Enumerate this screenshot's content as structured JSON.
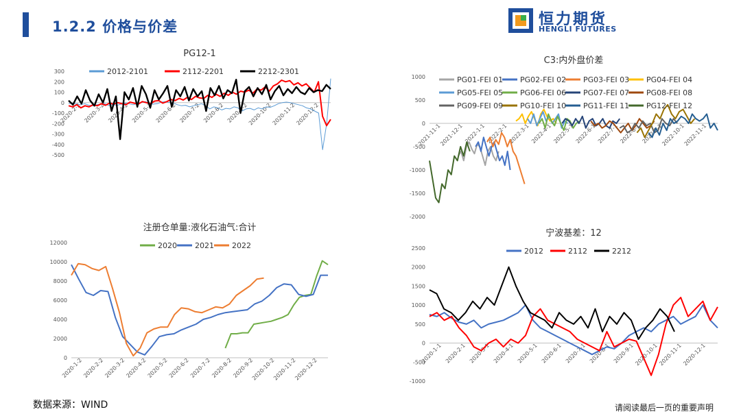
{
  "header": {
    "title": "1.2.2 价格与价差"
  },
  "logo": {
    "name_cn": "恒力期货",
    "name_en": "HENGLI FUTURES"
  },
  "footer": {
    "source": "数据来源：WIND",
    "disclaimer": "请阅读最后一页的重要声明"
  },
  "colors": {
    "brand": "#1f4e9c",
    "logo_orange": "#f29a1e",
    "logo_green": "#3aae49"
  },
  "chart_data": [
    {
      "id": "pg12-1",
      "type": "line",
      "title": "PG12-1",
      "ylim": [
        -500,
        300
      ],
      "yticks": [
        300,
        200,
        100,
        0,
        -100,
        -200,
        -300,
        -400,
        -500
      ],
      "xticks": [
        "2020-2-2",
        "2020-3-2",
        "2020-4-2",
        "2020-5-2",
        "2020-6-2",
        "2020-7-2",
        "2020-8-2",
        "2020-9-2",
        "2020-10-2",
        "2020-11-2",
        "2020-12-2"
      ],
      "grid": false,
      "legend": "top",
      "series": [
        {
          "name": "2012-2101",
          "color": "#5b9bd5",
          "width": 1,
          "values": [
            -10,
            -5,
            -15,
            -20,
            -10,
            -25,
            -30,
            -20,
            -15,
            -10,
            -30,
            -20,
            -25,
            -15,
            -5,
            -10,
            -20,
            -10,
            0,
            10,
            -5,
            -15,
            -10,
            5,
            10,
            0,
            -5,
            -20,
            -30,
            -25,
            -40,
            -30,
            -20,
            -10,
            -30,
            -60,
            -40,
            -50,
            -70,
            -55,
            -60,
            -40,
            -50,
            -80,
            -60,
            -55,
            -70,
            -50,
            -60,
            -40,
            -45,
            -30,
            -10,
            0,
            5,
            0,
            -10,
            -20,
            -30,
            -50,
            -60,
            -80,
            -100,
            -450,
            -200,
            230
          ]
        },
        {
          "name": "2112-2201",
          "color": "#ff0000",
          "width": 2,
          "values": [
            -30,
            -40,
            -20,
            -50,
            -30,
            -40,
            -20,
            -30,
            -10,
            -25,
            -5,
            -15,
            0,
            -10,
            -20,
            5,
            -5,
            -15,
            10,
            0,
            -10,
            15,
            20,
            -5,
            10,
            30,
            20,
            40,
            25,
            50,
            30,
            60,
            45,
            40,
            70,
            50,
            80,
            60,
            90,
            70,
            100,
            80,
            110,
            100,
            120,
            90,
            130,
            120,
            150,
            110,
            160,
            180,
            215,
            200,
            210,
            170,
            190,
            160,
            180,
            140,
            100,
            200,
            -130,
            -220,
            -160
          ]
        },
        {
          "name": "2212-2301",
          "color": "#000000",
          "width": 2.4,
          "values": [
            20,
            -20,
            60,
            -10,
            120,
            20,
            -30,
            80,
            0,
            130,
            -80,
            60,
            -350,
            100,
            30,
            140,
            -40,
            160,
            80,
            -50,
            120,
            30,
            90,
            160,
            -40,
            120,
            60,
            150,
            20,
            130,
            60,
            110,
            -80,
            140,
            70,
            160,
            40,
            120,
            90,
            220,
            -100,
            110,
            150,
            60,
            140,
            80,
            170,
            30,
            110,
            160,
            70,
            130,
            90,
            150,
            100,
            80,
            140,
            100,
            120,
            110,
            170,
            130
          ]
        }
      ]
    },
    {
      "id": "c3-spread",
      "type": "line",
      "title": "C3:内外盘价差",
      "ylim": [
        -2000,
        1000
      ],
      "yticks": [
        1000,
        500,
        0,
        -500,
        -1000,
        -1500,
        -2000
      ],
      "xticks": [
        "2021-11-1",
        "2021-12-1",
        "2022-1-1",
        "2022-2-1",
        "2022-3-1",
        "2022-4-1",
        "2022-5-1",
        "2022-6-1",
        "2022-7-1",
        "2022-8-1",
        "2022-9-1",
        "2022-10-1",
        "2022-11-1"
      ],
      "grid": false,
      "legend": "top",
      "series": [
        {
          "name": "PG01-FEI 01",
          "color": "#a5a5a5",
          "start": 0.1,
          "end": 0.24,
          "values": [
            -700,
            -600,
            -800,
            -500,
            -400,
            -550,
            -650,
            -450,
            -500,
            -700,
            -900,
            -600,
            -500,
            -700,
            -800,
            -600
          ]
        },
        {
          "name": "PG02-FEI 02",
          "color": "#4472c4",
          "start": 0.16,
          "end": 0.28,
          "values": [
            -500,
            -400,
            -600,
            -300,
            -500,
            -700,
            -500,
            -400,
            -600,
            -800,
            -700,
            -900,
            -600,
            -1000
          ]
        },
        {
          "name": "PG03-FEI 03",
          "color": "#ed7d31",
          "start": 0.2,
          "end": 0.33,
          "values": [
            -400,
            -300,
            -500,
            -350,
            -450,
            -200,
            -300,
            -500,
            -350,
            -600,
            -700,
            -900,
            -1100,
            -1300
          ]
        },
        {
          "name": "PG04-FEI 04",
          "color": "#ffc000",
          "start": 0.3,
          "end": 0.44,
          "values": [
            50,
            100,
            200,
            0,
            150,
            250,
            100,
            -50,
            200,
            300,
            150,
            50,
            100,
            0
          ]
        },
        {
          "name": "PG05-FEI 05",
          "color": "#5b9bd5",
          "start": 0.34,
          "end": 0.48,
          "values": [
            100,
            0,
            200,
            -50,
            100,
            250,
            50,
            150,
            0,
            100,
            200,
            -100,
            50,
            0
          ]
        },
        {
          "name": "PG06-FEI 06",
          "color": "#70ad47",
          "start": 0.38,
          "end": 0.52,
          "values": [
            0,
            100,
            -100,
            200,
            50,
            -50,
            150,
            0,
            -150,
            100,
            50,
            -100,
            0,
            50
          ]
        },
        {
          "name": "PG07-FEI 07",
          "color": "#264478",
          "start": 0.46,
          "end": 0.66,
          "values": [
            0,
            100,
            50,
            -50,
            100,
            0,
            150,
            -100,
            50,
            100,
            -50,
            0,
            100,
            -50,
            -100,
            50,
            0,
            100
          ]
        },
        {
          "name": "PG08-FEI 08",
          "color": "#9e480e",
          "start": 0.56,
          "end": 0.78,
          "values": [
            50,
            -50,
            0,
            -100,
            -50,
            50,
            0,
            -100,
            -200,
            -100,
            0,
            -150,
            -50,
            100,
            0,
            -100,
            -50,
            50
          ]
        },
        {
          "name": "PG09-FEI 09",
          "color": "#636363",
          "start": 0.66,
          "end": 0.86,
          "values": [
            -100,
            -50,
            -200,
            -150,
            0,
            -100,
            50,
            -50,
            0,
            -200,
            -150,
            100,
            0,
            -50,
            100,
            0
          ]
        },
        {
          "name": "PG10-FEI 10",
          "color": "#997300",
          "start": 0.72,
          "end": 0.92,
          "values": [
            -200,
            -100,
            -300,
            -150,
            0,
            200,
            100,
            300,
            400,
            200,
            100,
            250,
            300,
            150,
            0,
            100
          ]
        },
        {
          "name": "PG11-FEI 11",
          "color": "#255e91",
          "start": 0.76,
          "end": 1.0,
          "values": [
            -200,
            -300,
            -100,
            -250,
            0,
            -150,
            100,
            0,
            50,
            150,
            100,
            0,
            200,
            100,
            50,
            100,
            200,
            -100,
            0,
            -150
          ]
        },
        {
          "name": "PG12-FEI 12",
          "color": "#43682b",
          "start": 0.0,
          "end": 0.14,
          "values": [
            -800,
            -1200,
            -1600,
            -1700,
            -1300,
            -1400,
            -1000,
            -1100,
            -700,
            -800,
            -500,
            -700,
            -400,
            -600
          ]
        }
      ]
    },
    {
      "id": "warrant",
      "type": "line",
      "title": "注册仓单量:液化石油气:合计",
      "ylim": [
        0,
        12000
      ],
      "yticks": [
        12000,
        10000,
        8000,
        6000,
        4000,
        2000,
        0
      ],
      "xticks": [
        "2020-1-2",
        "2020-2-2",
        "2020-3-2",
        "2020-4-2",
        "2020-5-2",
        "2020-6-2",
        "2020-7-2",
        "2020-8-2",
        "2020-9-2",
        "2020-10-2",
        "2020-11-2",
        "2020-12-2"
      ],
      "grid": false,
      "legend": "top",
      "series": [
        {
          "name": "2020",
          "color": "#70ad47",
          "start": 0.6,
          "end": 1.0,
          "values": [
            1000,
            2500,
            2500,
            2600,
            2600,
            3500,
            3600,
            3700,
            3800,
            4000,
            4200,
            4500,
            5500,
            6300,
            6500,
            6600,
            8500,
            10100,
            9700
          ]
        },
        {
          "name": "2021",
          "color": "#4472c4",
          "start": 0.0,
          "end": 1.0,
          "values": [
            9700,
            8200,
            6800,
            6500,
            7000,
            6900,
            4200,
            2200,
            1400,
            600,
            300,
            1200,
            2200,
            2400,
            2500,
            2900,
            3200,
            3500,
            4000,
            4200,
            4500,
            4700,
            4800,
            4900,
            5000,
            5600,
            5900,
            6500,
            7300,
            7700,
            7600,
            6600,
            6400,
            6600,
            8600,
            8600
          ]
        },
        {
          "name": "2022",
          "color": "#ed7d31",
          "start": 0.0,
          "end": 0.75,
          "values": [
            8600,
            9800,
            9700,
            9300,
            9100,
            9500,
            7200,
            4700,
            1500,
            200,
            1000,
            2600,
            3000,
            3200,
            3200,
            4500,
            5200,
            5100,
            4800,
            4700,
            5000,
            5300,
            5200,
            5600,
            6500,
            7000,
            7500,
            8200,
            8300
          ]
        }
      ]
    },
    {
      "id": "ningbo-basis",
      "type": "line",
      "title": "宁波基差：12",
      "ylim": [
        -1000,
        2500
      ],
      "yticks": [
        2500,
        2000,
        1500,
        1000,
        500,
        0,
        -500,
        -1000
      ],
      "xticks": [
        "2020-1-1",
        "2020-2-1",
        "2020-3-1",
        "2020-4-1",
        "2020-5-1",
        "2020-6-1",
        "2020-7-1",
        "2020-8-1",
        "2020-9-1",
        "2020-10-1",
        "2020-11-1",
        "2020-12-1"
      ],
      "grid": false,
      "legend": "top",
      "series": [
        {
          "name": "2012",
          "color": "#4472c4",
          "start": 0.0,
          "end": 1.0,
          "values": [
            750,
            700,
            800,
            650,
            550,
            500,
            600,
            400,
            500,
            550,
            600,
            700,
            800,
            1000,
            600,
            400,
            300,
            200,
            100,
            0,
            -100,
            -200,
            -300,
            -200,
            -100,
            -150,
            0,
            200,
            300,
            400,
            300,
            500,
            600,
            700,
            500,
            600,
            700,
            1000,
            600,
            400
          ]
        },
        {
          "name": "2112",
          "color": "#ff0000",
          "start": 0.0,
          "end": 1.0,
          "values": [
            700,
            800,
            600,
            700,
            400,
            200,
            -100,
            -200,
            0,
            100,
            -100,
            100,
            0,
            200,
            700,
            900,
            600,
            500,
            400,
            300,
            100,
            0,
            -100,
            -200,
            300,
            -100,
            0,
            100,
            50,
            -400,
            -850,
            -300,
            500,
            1000,
            1200,
            700,
            900,
            1100,
            600,
            950
          ]
        },
        {
          "name": "2212",
          "color": "#000000",
          "start": 0.0,
          "end": 0.85,
          "values": [
            1400,
            1300,
            900,
            800,
            600,
            800,
            1100,
            900,
            1200,
            1000,
            1500,
            2000,
            1500,
            1100,
            800,
            700,
            600,
            400,
            800,
            600,
            500,
            700,
            400,
            900,
            300,
            700,
            500,
            800,
            600,
            100,
            400,
            600,
            900,
            700,
            300
          ]
        }
      ]
    }
  ]
}
